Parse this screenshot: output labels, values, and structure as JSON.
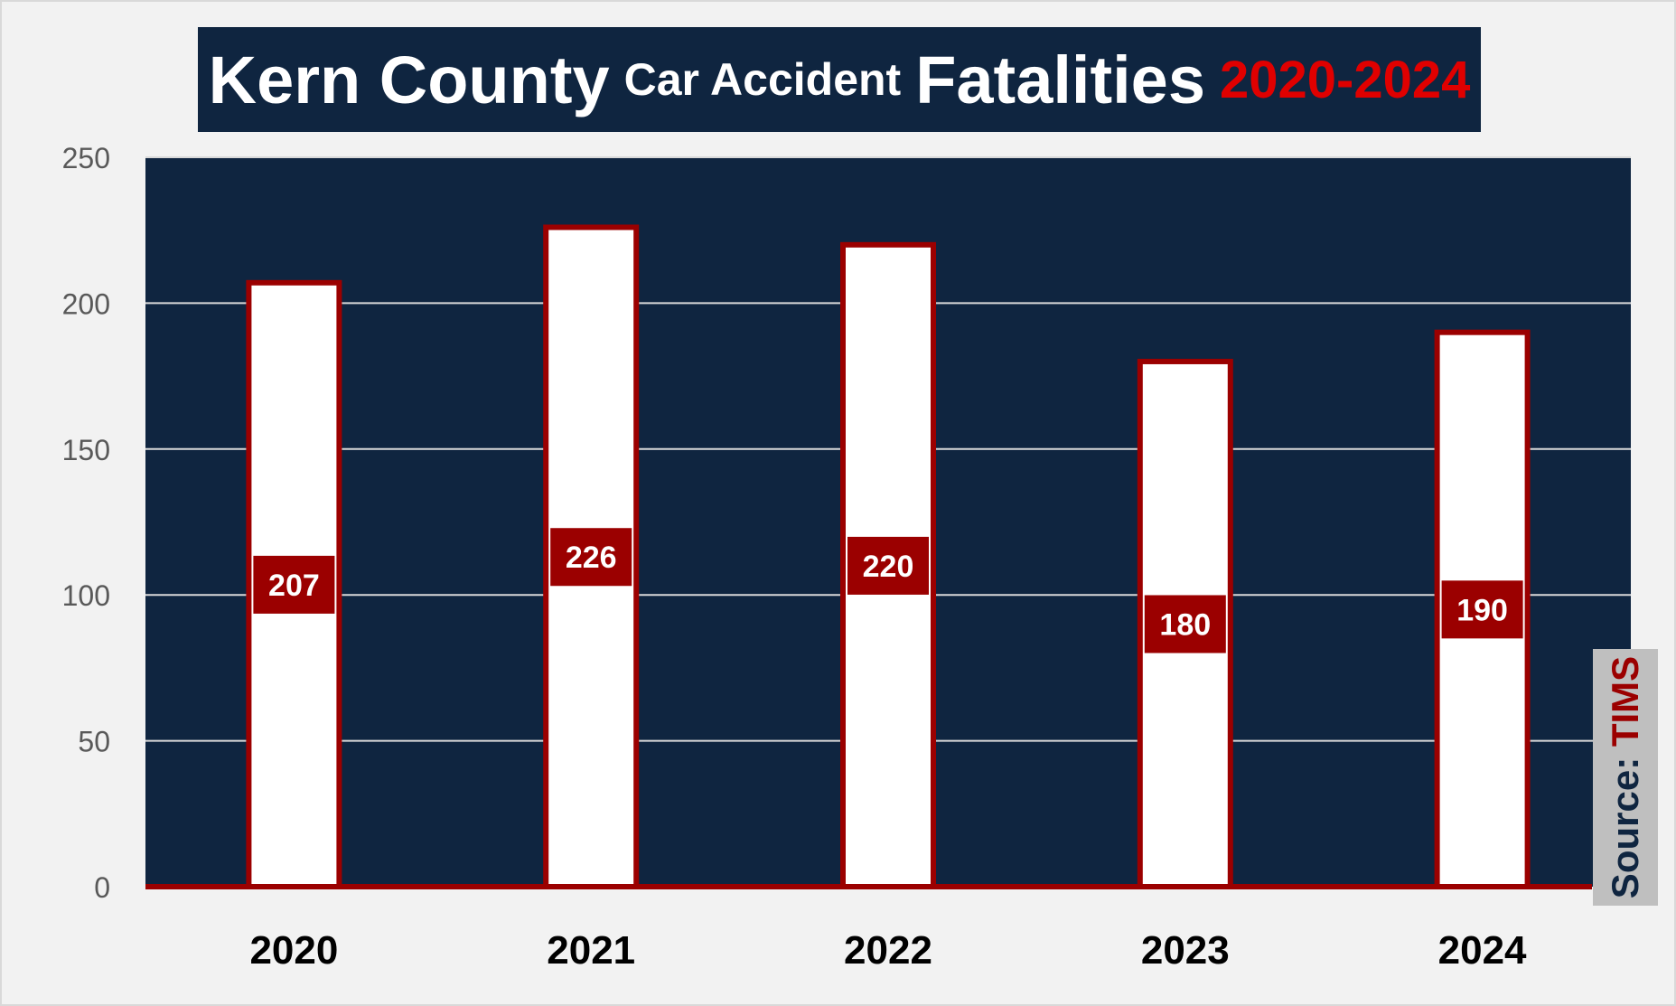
{
  "title": {
    "part1": "Kern County",
    "part2": "Car Accident",
    "part3": "Fatalities",
    "part4": "2020-2024"
  },
  "source": {
    "label": "Source:",
    "value": "TIMS"
  },
  "colors": {
    "plot_bg": "#0f2540",
    "bar_fill": "#ffffff",
    "bar_border": "#9b0000",
    "label_bg": "#9b0000",
    "accent_red": "#e00000",
    "gridline": "#d9d9d9"
  },
  "chart_data": {
    "type": "bar",
    "categories": [
      "2020",
      "2021",
      "2022",
      "2023",
      "2024"
    ],
    "values": [
      207,
      226,
      220,
      180,
      190
    ],
    "data_labels": [
      "207",
      "226",
      "220",
      "180",
      "190"
    ],
    "yticks": [
      "0",
      "50",
      "100",
      "150",
      "200",
      "250"
    ],
    "ylim": [
      0,
      250
    ],
    "grid": true,
    "legend": "none"
  }
}
